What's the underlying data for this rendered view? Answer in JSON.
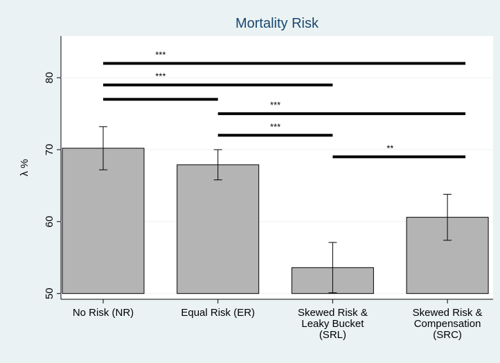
{
  "chart_data": {
    "type": "bar",
    "title": "Mortality Risk",
    "y_label": "λ %",
    "categories": [
      "No Risk (NR)",
      "Equal Risk (ER)",
      "Skewed Risk &\nLeaky Bucket\n(SRL)",
      "Skewed Risk &\nCompensation\n(SRC)"
    ],
    "values": [
      70.2,
      67.9,
      53.6,
      60.6
    ],
    "errors": [
      3.0,
      2.1,
      3.5,
      3.2
    ],
    "base": 50,
    "color": "#b4b4b4",
    "ylim": [
      49.2,
      85.8
    ],
    "yticks": [
      50,
      60,
      70,
      80
    ],
    "grid": true,
    "comparisons": [
      {
        "from": 0,
        "to": 3,
        "y": 82,
        "label": "***"
      },
      {
        "from": 0,
        "to": 2,
        "y": 79,
        "label": "***"
      },
      {
        "from": 0,
        "to": 1,
        "y": 77
      },
      {
        "from": 1,
        "to": 3,
        "y": 75,
        "label": "***"
      },
      {
        "from": 1,
        "to": 2,
        "y": 72,
        "label": "***"
      },
      {
        "from": 2,
        "to": 3,
        "y": 69,
        "label": "**"
      }
    ]
  }
}
